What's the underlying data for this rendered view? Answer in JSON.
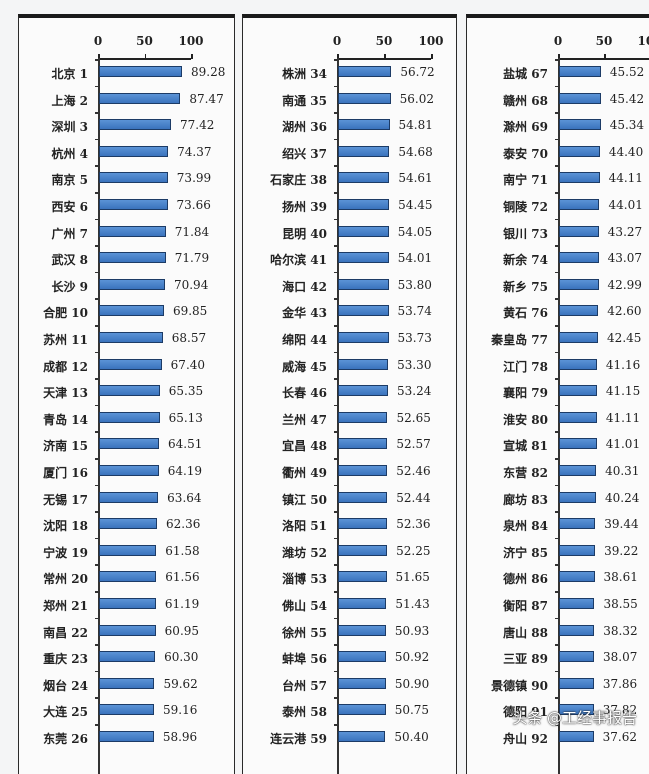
{
  "chart_data": {
    "type": "bar",
    "orientation": "horizontal",
    "title": "",
    "xlabel": "",
    "ylabel": "",
    "xlim": [
      0,
      100
    ],
    "xticks": [
      "0",
      "50",
      "100"
    ],
    "grid": false,
    "legend": null,
    "bar_color": "#3f7ac4",
    "panels": [
      {
        "rows": [
          {
            "city": "北京",
            "rank": 1,
            "value": 89.28
          },
          {
            "city": "上海",
            "rank": 2,
            "value": 87.47
          },
          {
            "city": "深圳",
            "rank": 3,
            "value": 77.42
          },
          {
            "city": "杭州",
            "rank": 4,
            "value": 74.37
          },
          {
            "city": "南京",
            "rank": 5,
            "value": 73.99
          },
          {
            "city": "西安",
            "rank": 6,
            "value": 73.66
          },
          {
            "city": "广州",
            "rank": 7,
            "value": 71.84
          },
          {
            "city": "武汉",
            "rank": 8,
            "value": 71.79
          },
          {
            "city": "长沙",
            "rank": 9,
            "value": 70.94
          },
          {
            "city": "合肥",
            "rank": 10,
            "value": 69.85
          },
          {
            "city": "苏州",
            "rank": 11,
            "value": 68.57
          },
          {
            "city": "成都",
            "rank": 12,
            "value": 67.4
          },
          {
            "city": "天津",
            "rank": 13,
            "value": 65.35
          },
          {
            "city": "青岛",
            "rank": 14,
            "value": 65.13
          },
          {
            "city": "济南",
            "rank": 15,
            "value": 64.51
          },
          {
            "city": "厦门",
            "rank": 16,
            "value": 64.19
          },
          {
            "city": "无锡",
            "rank": 17,
            "value": 63.64
          },
          {
            "city": "沈阳",
            "rank": 18,
            "value": 62.36
          },
          {
            "city": "宁波",
            "rank": 19,
            "value": 61.58
          },
          {
            "city": "常州",
            "rank": 20,
            "value": 61.56
          },
          {
            "city": "郑州",
            "rank": 21,
            "value": 61.19
          },
          {
            "city": "南昌",
            "rank": 22,
            "value": 60.95
          },
          {
            "city": "重庆",
            "rank": 23,
            "value": 60.3
          },
          {
            "city": "烟台",
            "rank": 24,
            "value": 59.62
          },
          {
            "city": "大连",
            "rank": 25,
            "value": 59.16
          },
          {
            "city": "东莞",
            "rank": 26,
            "value": 58.96
          }
        ]
      },
      {
        "rows": [
          {
            "city": "株洲",
            "rank": 34,
            "value": 56.72
          },
          {
            "city": "南通",
            "rank": 35,
            "value": 56.02
          },
          {
            "city": "湖州",
            "rank": 36,
            "value": 54.81
          },
          {
            "city": "绍兴",
            "rank": 37,
            "value": 54.68
          },
          {
            "city": "石家庄",
            "rank": 38,
            "value": 54.61
          },
          {
            "city": "扬州",
            "rank": 39,
            "value": 54.45
          },
          {
            "city": "昆明",
            "rank": 40,
            "value": 54.05
          },
          {
            "city": "哈尔滨",
            "rank": 41,
            "value": 54.01
          },
          {
            "city": "海口",
            "rank": 42,
            "value": 53.8
          },
          {
            "city": "金华",
            "rank": 43,
            "value": 53.74
          },
          {
            "city": "绵阳",
            "rank": 44,
            "value": 53.73
          },
          {
            "city": "威海",
            "rank": 45,
            "value": 53.3
          },
          {
            "city": "长春",
            "rank": 46,
            "value": 53.24
          },
          {
            "city": "兰州",
            "rank": 47,
            "value": 52.65
          },
          {
            "city": "宜昌",
            "rank": 48,
            "value": 52.57
          },
          {
            "city": "衢州",
            "rank": 49,
            "value": 52.46
          },
          {
            "city": "镇江",
            "rank": 50,
            "value": 52.44
          },
          {
            "city": "洛阳",
            "rank": 51,
            "value": 52.36
          },
          {
            "city": "潍坊",
            "rank": 52,
            "value": 52.25
          },
          {
            "city": "淄博",
            "rank": 53,
            "value": 51.65
          },
          {
            "city": "佛山",
            "rank": 54,
            "value": 51.43
          },
          {
            "city": "徐州",
            "rank": 55,
            "value": 50.93
          },
          {
            "city": "蚌埠",
            "rank": 56,
            "value": 50.92
          },
          {
            "city": "台州",
            "rank": 57,
            "value": 50.9
          },
          {
            "city": "泰州",
            "rank": 58,
            "value": 50.75
          },
          {
            "city": "连云港",
            "rank": 59,
            "value": 50.4
          }
        ]
      },
      {
        "rows": [
          {
            "city": "盐城",
            "rank": 67,
            "value": 45.52
          },
          {
            "city": "赣州",
            "rank": 68,
            "value": 45.42
          },
          {
            "city": "滁州",
            "rank": 69,
            "value": 45.34
          },
          {
            "city": "泰安",
            "rank": 70,
            "value": 44.4
          },
          {
            "city": "南宁",
            "rank": 71,
            "value": 44.11
          },
          {
            "city": "铜陵",
            "rank": 72,
            "value": 44.01
          },
          {
            "city": "银川",
            "rank": 73,
            "value": 43.27
          },
          {
            "city": "新余",
            "rank": 74,
            "value": 43.07
          },
          {
            "city": "新乡",
            "rank": 75,
            "value": 42.99
          },
          {
            "city": "黄石",
            "rank": 76,
            "value": 42.6
          },
          {
            "city": "秦皇岛",
            "rank": 77,
            "value": 42.45
          },
          {
            "city": "江门",
            "rank": 78,
            "value": 41.16
          },
          {
            "city": "襄阳",
            "rank": 79,
            "value": 41.15
          },
          {
            "city": "淮安",
            "rank": 80,
            "value": 41.11
          },
          {
            "city": "宣城",
            "rank": 81,
            "value": 41.01
          },
          {
            "city": "东营",
            "rank": 82,
            "value": 40.31
          },
          {
            "city": "廊坊",
            "rank": 83,
            "value": 40.24
          },
          {
            "city": "泉州",
            "rank": 84,
            "value": 39.44
          },
          {
            "city": "济宁",
            "rank": 85,
            "value": 39.22
          },
          {
            "city": "德州",
            "rank": 86,
            "value": 38.61
          },
          {
            "city": "衡阳",
            "rank": 87,
            "value": 38.55
          },
          {
            "city": "唐山",
            "rank": 88,
            "value": 38.32
          },
          {
            "city": "三亚",
            "rank": 89,
            "value": 38.07
          },
          {
            "city": "景德镇",
            "rank": 90,
            "value": 37.86
          },
          {
            "city": "德阳",
            "rank": 91,
            "value": 37.82
          },
          {
            "city": "舟山",
            "rank": 92,
            "value": 37.62
          }
        ]
      }
    ]
  },
  "watermark": "头条 @工经事报告"
}
